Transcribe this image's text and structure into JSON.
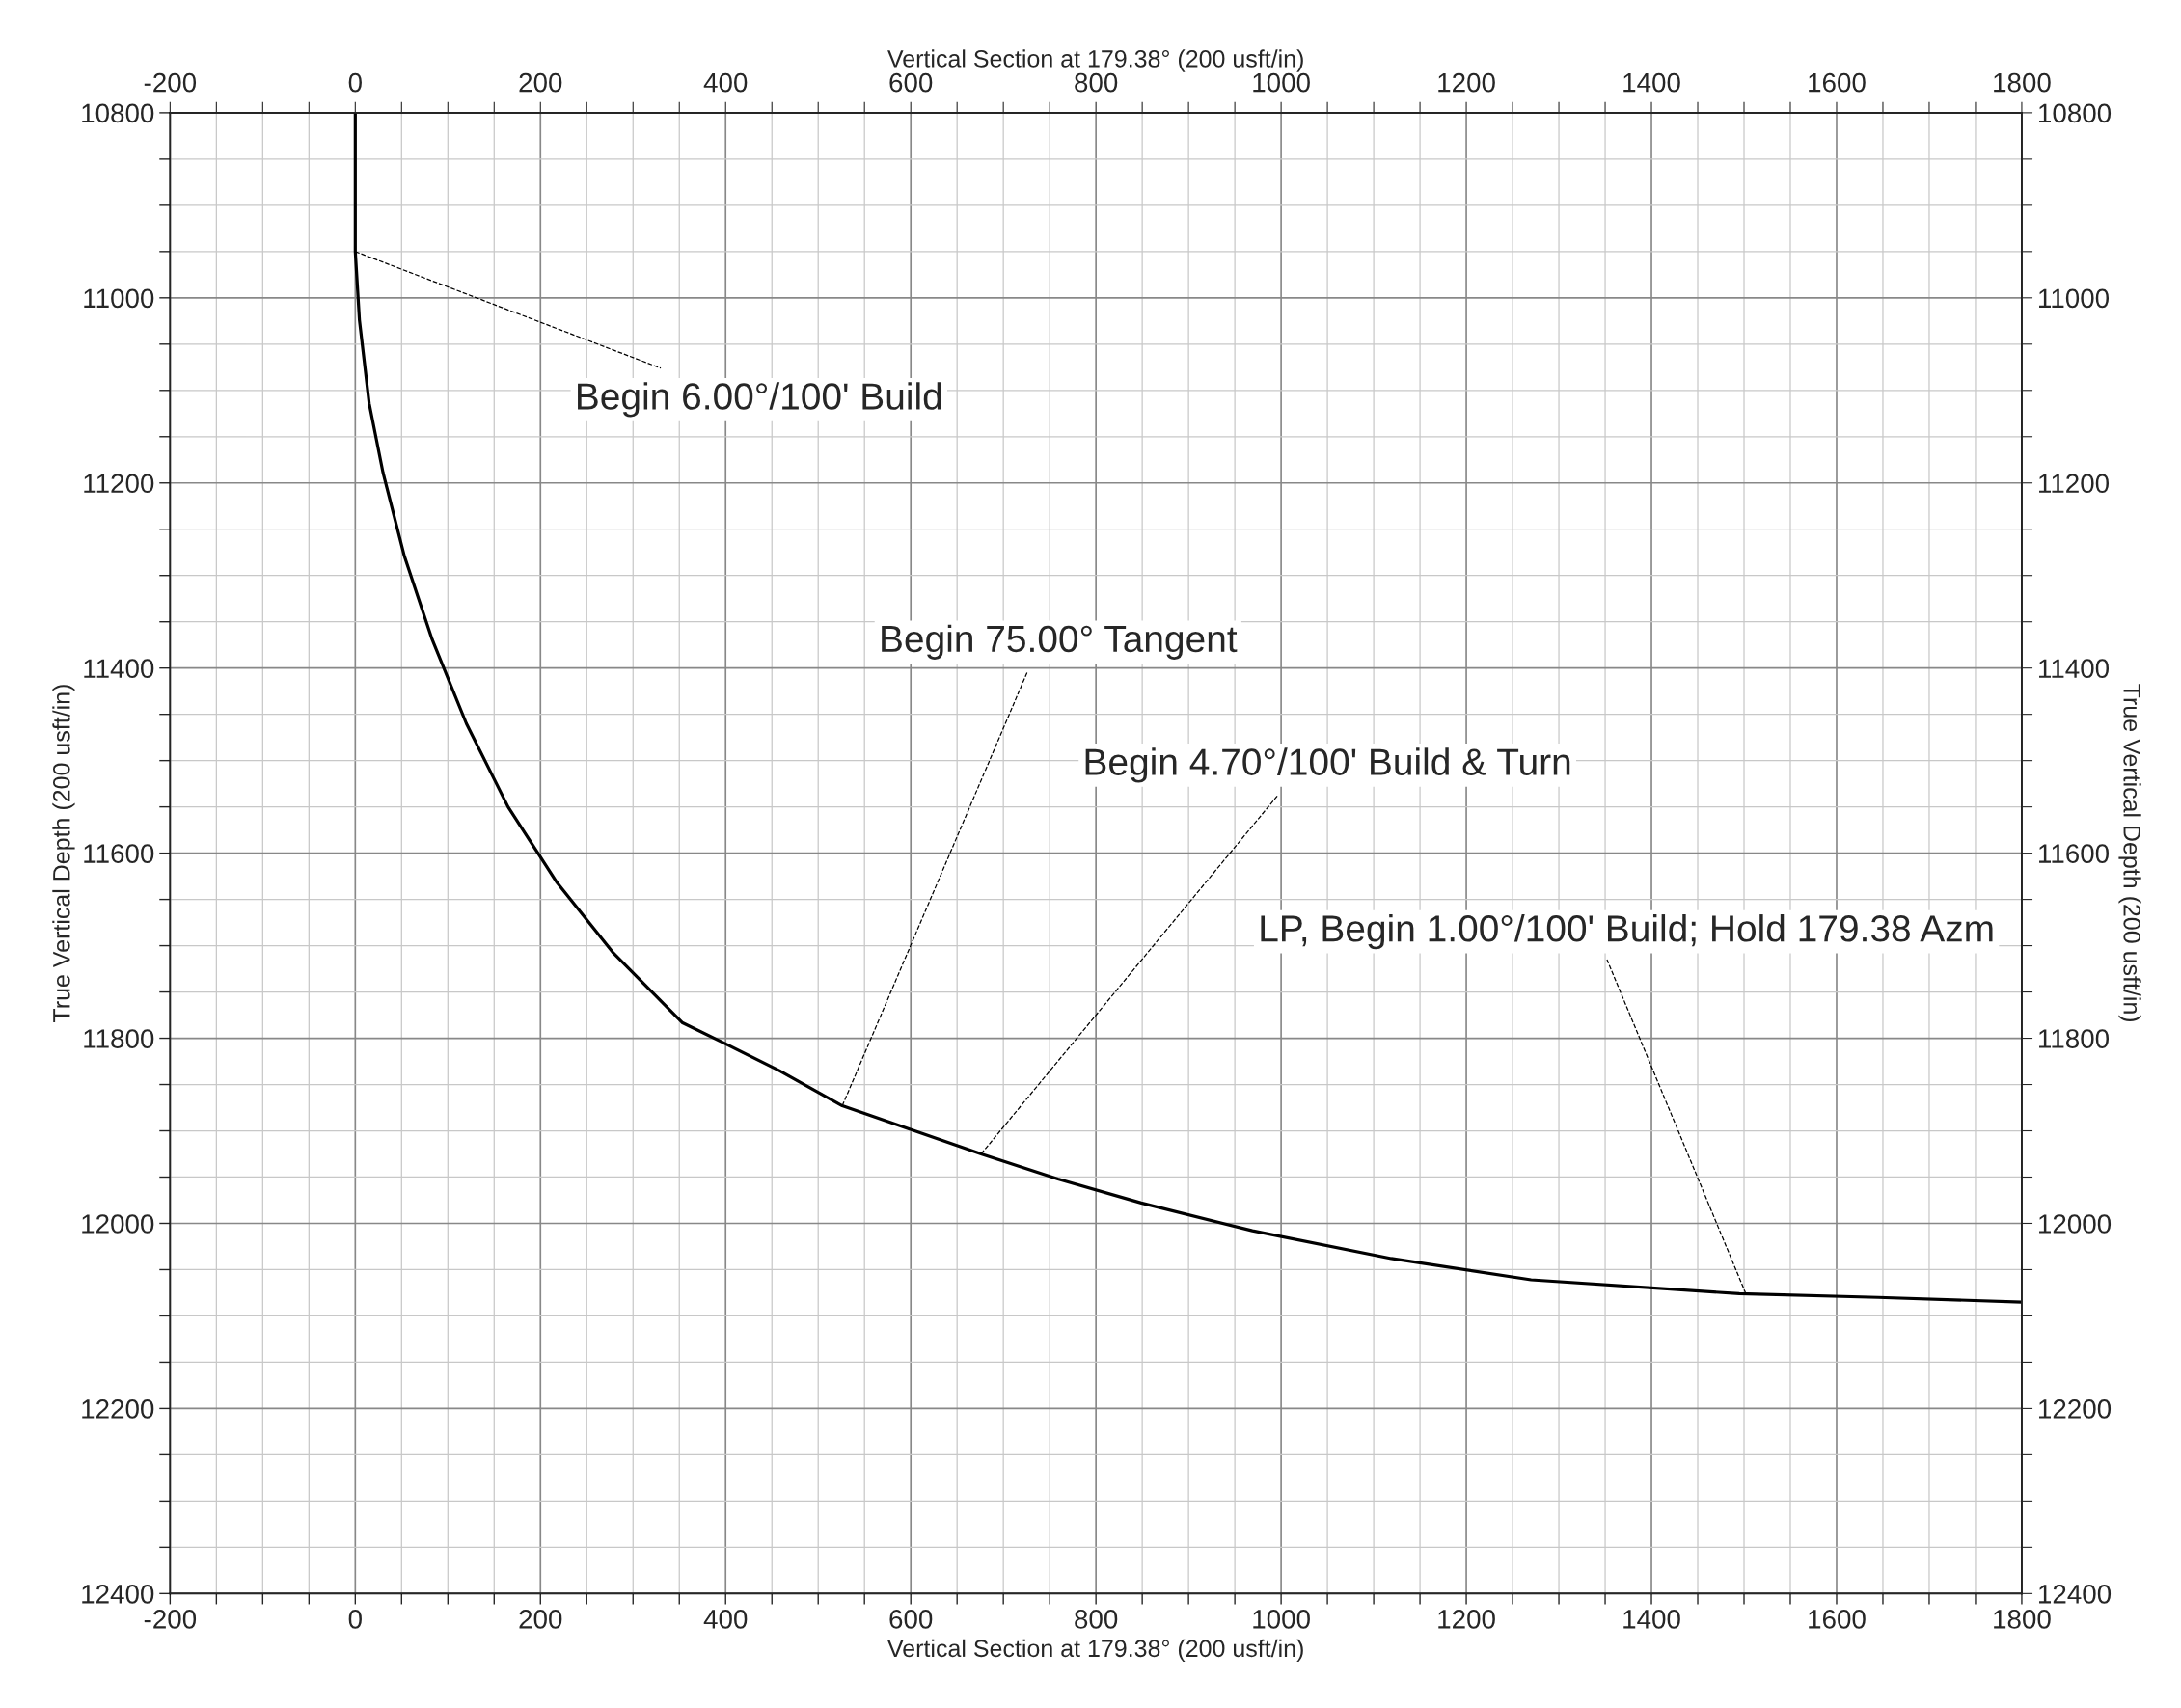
{
  "chart_data": {
    "type": "line",
    "xlabel": "Vertical Section at 179.38° (200 usft/in)",
    "x2label": "Vertical Section at 179.38° (200 usft/in)",
    "ylabel": "True Vertical Depth (200 usft/in)",
    "y2label": "True Vertical Depth (200 usft/in)",
    "xlim": [
      -200,
      1800
    ],
    "x2lim": [
      -200,
      1800
    ],
    "ylim": [
      12400,
      10800
    ],
    "y2lim": [
      12400,
      10800
    ],
    "xticks": [
      -200,
      {
        "value": -150,
        "label": null
      },
      {
        "value": -100,
        "label": null
      },
      {
        "value": -50,
        "label": null
      },
      0,
      {
        "value": 50,
        "label": null
      },
      {
        "value": 100,
        "label": null
      },
      {
        "value": 150,
        "label": null
      },
      200,
      {
        "value": 250,
        "label": null
      },
      {
        "value": 300,
        "label": null
      },
      {
        "value": 350,
        "label": null
      },
      400,
      {
        "value": 450,
        "label": null
      },
      {
        "value": 500,
        "label": null
      },
      {
        "value": 550,
        "label": null
      },
      600,
      {
        "value": 650,
        "label": null
      },
      {
        "value": 700,
        "label": null
      },
      {
        "value": 750,
        "label": null
      },
      800,
      {
        "value": 850,
        "label": null
      },
      {
        "value": 900,
        "label": null
      },
      {
        "value": 950,
        "label": null
      },
      1000,
      {
        "value": 1050,
        "label": null
      },
      {
        "value": 1100,
        "label": null
      },
      {
        "value": 1150,
        "label": null
      },
      1200,
      {
        "value": 1250,
        "label": null
      },
      {
        "value": 1300,
        "label": null
      },
      {
        "value": 1350,
        "label": null
      },
      1400,
      {
        "value": 1450,
        "label": null
      },
      {
        "value": 1500,
        "label": null
      },
      {
        "value": 1550,
        "label": null
      },
      1600,
      {
        "value": 1650,
        "label": null
      },
      {
        "value": 1700,
        "label": null
      },
      {
        "value": 1750,
        "label": null
      },
      1800
    ],
    "x2ticks": [
      -200,
      {
        "value": -150,
        "label": null
      },
      {
        "value": -100,
        "label": null
      },
      {
        "value": -50,
        "label": null
      },
      0,
      {
        "value": 50,
        "label": null
      },
      {
        "value": 100,
        "label": null
      },
      {
        "value": 150,
        "label": null
      },
      200,
      {
        "value": 250,
        "label": null
      },
      {
        "value": 300,
        "label": null
      },
      {
        "value": 350,
        "label": null
      },
      400,
      {
        "value": 450,
        "label": null
      },
      {
        "value": 500,
        "label": null
      },
      {
        "value": 550,
        "label": null
      },
      600,
      {
        "value": 650,
        "label": null
      },
      {
        "value": 700,
        "label": null
      },
      {
        "value": 750,
        "label": null
      },
      800,
      {
        "value": 850,
        "label": null
      },
      {
        "value": 900,
        "label": null
      },
      {
        "value": 950,
        "label": null
      },
      1000,
      {
        "value": 1050,
        "label": null
      },
      {
        "value": 1100,
        "label": null
      },
      {
        "value": 1150,
        "label": null
      },
      1200,
      {
        "value": 1250,
        "label": null
      },
      {
        "value": 1300,
        "label": null
      },
      {
        "value": 1350,
        "label": null
      },
      1400,
      {
        "value": 1450,
        "label": null
      },
      {
        "value": 1500,
        "label": null
      },
      {
        "value": 1550,
        "label": null
      },
      1600,
      {
        "value": 1650,
        "label": null
      },
      {
        "value": 1700,
        "label": null
      },
      {
        "value": 1750,
        "label": null
      },
      1800
    ],
    "yticks": [
      10800,
      {
        "value": 10850,
        "label": null
      },
      {
        "value": 10900,
        "label": null
      },
      {
        "value": 10950,
        "label": null
      },
      11000,
      {
        "value": 11050,
        "label": null
      },
      {
        "value": 11100,
        "label": null
      },
      {
        "value": 11150,
        "label": null
      },
      11200,
      {
        "value": 11250,
        "label": null
      },
      {
        "value": 11300,
        "label": null
      },
      {
        "value": 11350,
        "label": null
      },
      11400,
      {
        "value": 11450,
        "label": null
      },
      {
        "value": 11500,
        "label": null
      },
      {
        "value": 11550,
        "label": null
      },
      11600,
      {
        "value": 11650,
        "label": null
      },
      {
        "value": 11700,
        "label": null
      },
      {
        "value": 11750,
        "label": null
      },
      11800,
      {
        "value": 11850,
        "label": null
      },
      {
        "value": 11900,
        "label": null
      },
      {
        "value": 11950,
        "label": null
      },
      12000,
      {
        "value": 12050,
        "label": null
      },
      {
        "value": 12100,
        "label": null
      },
      {
        "value": 12150,
        "label": null
      },
      12200,
      {
        "value": 12250,
        "label": null
      },
      {
        "value": 12300,
        "label": null
      },
      {
        "value": 12350,
        "label": null
      },
      12400
    ],
    "y2ticks": [
      10800,
      {
        "value": 10850,
        "label": null
      },
      {
        "value": 10900,
        "label": null
      },
      {
        "value": 10950,
        "label": null
      },
      11000,
      {
        "value": 11050,
        "label": null
      },
      {
        "value": 11100,
        "label": null
      },
      {
        "value": 11150,
        "label": null
      },
      11200,
      {
        "value": 11250,
        "label": null
      },
      {
        "value": 11300,
        "label": null
      },
      {
        "value": 11350,
        "label": null
      },
      11400,
      {
        "value": 11450,
        "label": null
      },
      {
        "value": 11500,
        "label": null
      },
      {
        "value": 11550,
        "label": null
      },
      11600,
      {
        "value": 11650,
        "label": null
      },
      {
        "value": 11700,
        "label": null
      },
      {
        "value": 11750,
        "label": null
      },
      11800,
      {
        "value": 11850,
        "label": null
      },
      {
        "value": 11900,
        "label": null
      },
      {
        "value": 11950,
        "label": null
      },
      12000,
      {
        "value": 12050,
        "label": null
      },
      {
        "value": 12100,
        "label": null
      },
      {
        "value": 12150,
        "label": null
      },
      12200,
      {
        "value": 12250,
        "label": null
      },
      {
        "value": 12300,
        "label": null
      },
      {
        "value": 12350,
        "label": null
      },
      12400
    ],
    "grid": true,
    "series": [
      {
        "color": "#000000",
        "x": [
          0,
          0,
          4.5,
          15,
          30,
          53,
          83,
          120,
          165,
          218,
          278,
          353,
          398,
          458,
          526,
          601,
          676,
          759,
          849,
          969,
          1119,
          1270,
          1495,
          1645,
          1800
        ],
        "values": [
          10800,
          10950,
          11024,
          11114,
          11189,
          11279,
          11369,
          11460,
          11550,
          11632,
          11707,
          11783,
          11805,
          11835,
          11873,
          11899,
          11925,
          11952,
          11978,
          12008,
          12038,
          12061,
          12076,
          12080,
          12085
        ]
      }
    ],
    "annotations": [
      {
        "text": "Begin 6.00°/100' Build",
        "x": 0,
        "y": 10950
      },
      {
        "text": "Begin 75.00° Tangent",
        "x": 526,
        "y": 11873
      },
      {
        "text": "Begin 4.70°/100' Build & Turn",
        "x": 676,
        "y": 11925
      },
      {
        "text": "LP, Begin 1.00°/100' Build; Hold 179.38 Azm",
        "x": 1502,
        "y": 12076
      }
    ]
  }
}
